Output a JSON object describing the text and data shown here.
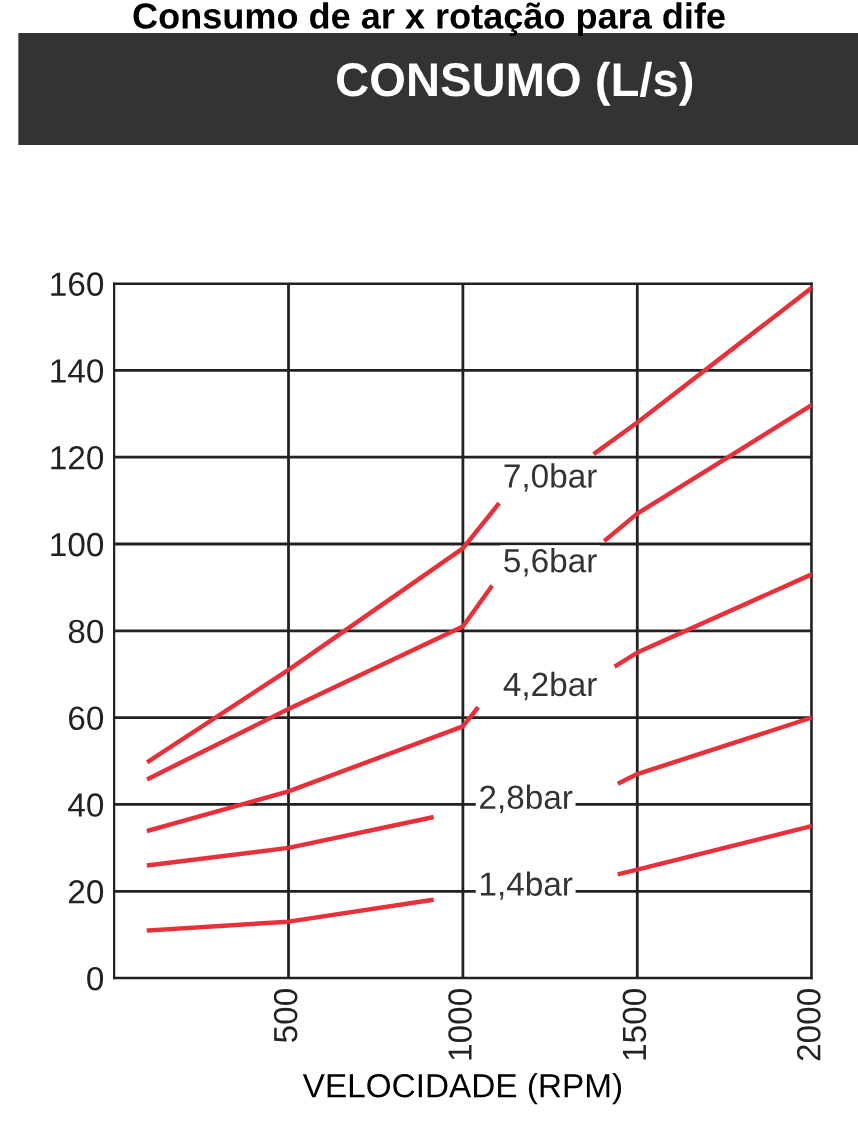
{
  "chart_data": {
    "type": "line",
    "title": "Consumo de ar x rotação para dife",
    "subtitle": "CONSUMO (L/s)",
    "xlabel": "VELOCIDADE (RPM)",
    "xlim": [
      0,
      2000
    ],
    "xticks": [
      500,
      1000,
      1500,
      2000
    ],
    "ylim": [
      0,
      160
    ],
    "yticks": [
      0,
      20,
      40,
      60,
      80,
      100,
      120,
      140,
      160
    ],
    "grid": true,
    "legend": false,
    "series": [
      {
        "name": "7,0bar",
        "color": "#e8303a",
        "x": [
          100,
          500,
          1000,
          1100,
          1250,
          1380,
          1500,
          2000
        ],
        "values": [
          50,
          71,
          99,
          109,
          null,
          121,
          128,
          159
        ]
      },
      {
        "name": "5,6bar",
        "color": "#e8303a",
        "x": [
          100,
          500,
          1000,
          1080,
          1250,
          1410,
          1500,
          2000
        ],
        "values": [
          46,
          62,
          81,
          90,
          null,
          101,
          107,
          132
        ]
      },
      {
        "name": "4,2bar",
        "color": "#e8303a",
        "x": [
          100,
          500,
          1000,
          1040,
          1250,
          1440,
          1500,
          2000
        ],
        "values": [
          34,
          43,
          58,
          62,
          null,
          72,
          75,
          93
        ]
      },
      {
        "name": "2,8bar",
        "color": "#e8303a",
        "x": [
          100,
          500,
          910,
          1180,
          1450,
          1500,
          2000
        ],
        "values": [
          26,
          30,
          37,
          null,
          45,
          47,
          60
        ]
      },
      {
        "name": "1,4bar",
        "color": "#e8303a",
        "x": [
          100,
          500,
          910,
          1180,
          1450,
          1500,
          2000
        ],
        "values": [
          11,
          13,
          18,
          null,
          24,
          25,
          35
        ]
      }
    ]
  }
}
